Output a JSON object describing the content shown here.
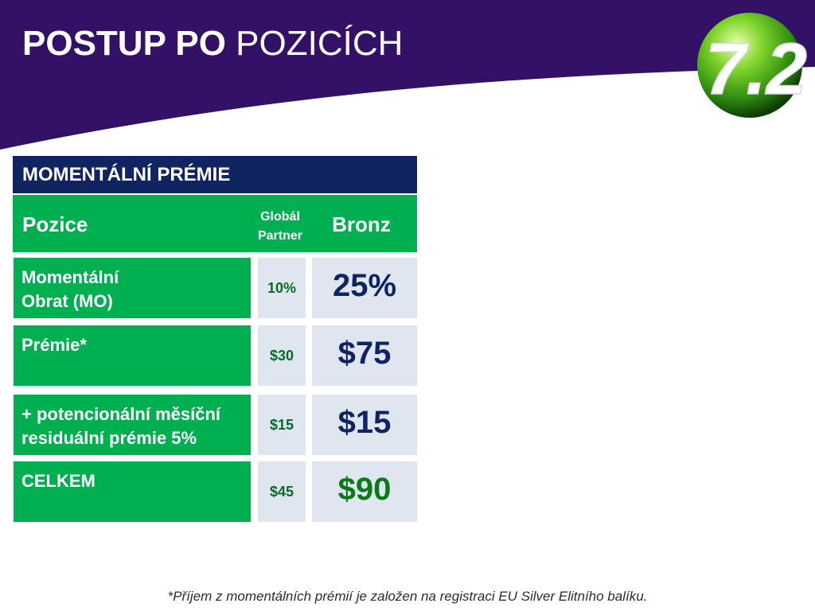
{
  "title": {
    "bold": "POSTUP PO",
    "rest": "POZICÍCH"
  },
  "logo": {
    "text": "7.2",
    "icon": "green-globe-logo"
  },
  "table": {
    "heading": "MOMENTÁLNÍ PRÉMIE",
    "columns": {
      "position": "Pozice",
      "global_partner": [
        "Globál",
        "Partner"
      ],
      "bronze": "Bronz"
    },
    "rows": [
      {
        "label": [
          "Momentální",
          "Obrat (MO)"
        ],
        "global_partner": "10%",
        "bronze": "25%"
      },
      {
        "label": [
          "Prémie*",
          ""
        ],
        "global_partner": "$30",
        "bronze": "$75"
      },
      {
        "label": [
          "+ potencionální měsíční",
          "residuální prémie 5%"
        ],
        "global_partner": "$15",
        "bronze": "$15"
      },
      {
        "label": [
          "CELKEM",
          ""
        ],
        "global_partner": "$45",
        "bronze": "$90"
      }
    ]
  },
  "footnote": "*Příjem z momentálních prémií  je založen na registraci EU Silver Elitního balíku.",
  "colors": {
    "header_purple": "#331166",
    "table_navy": "#0f2461",
    "table_green": "#00b050",
    "cell_light": "#dfe6f0"
  }
}
